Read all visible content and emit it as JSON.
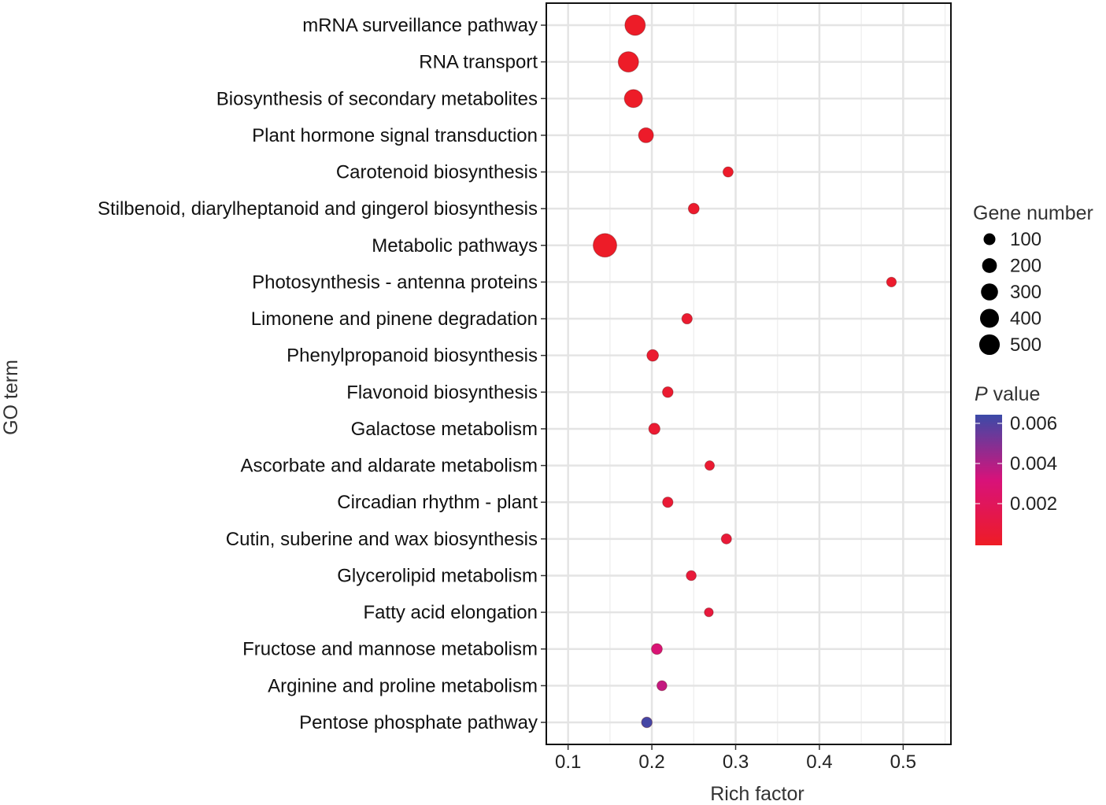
{
  "chart_data": {
    "type": "scatter",
    "xlabel": "Rich factor",
    "ylabel": "GO term",
    "xlim": [
      0.074,
      0.557
    ],
    "xticks": [
      "0.1",
      "0.2",
      "0.3",
      "0.4",
      "0.5"
    ],
    "grid": true,
    "legend_placement": "right",
    "size_legend": {
      "title": "Gene number",
      "values": [
        "100",
        "200",
        "300",
        "400",
        "500"
      ]
    },
    "color_legend": {
      "title_italic": "P",
      "title_rest": " value",
      "ticks": [
        "0.006",
        "0.004",
        "0.002"
      ],
      "range": [
        0,
        0.0064
      ],
      "low_color": "#ee1c25",
      "mid_color": "#d8127a",
      "high_color": "#3b4aa8"
    },
    "points": [
      {
        "term": "mRNA surveillance pathway",
        "rich_factor": 0.18,
        "gene_number": 490,
        "p_value": 0.0001
      },
      {
        "term": "RNA transport",
        "rich_factor": 0.172,
        "gene_number": 490,
        "p_value": 0.0001
      },
      {
        "term": "Biosynthesis of secondary metabolites",
        "rich_factor": 0.178,
        "gene_number": 360,
        "p_value": 0.0001
      },
      {
        "term": "Plant hormone signal transduction",
        "rich_factor": 0.193,
        "gene_number": 210,
        "p_value": 0.0002
      },
      {
        "term": "Carotenoid biosynthesis",
        "rich_factor": 0.291,
        "gene_number": 60,
        "p_value": 0.0002
      },
      {
        "term": "Stilbenoid, diarylheptanoid and gingerol biosynthesis",
        "rich_factor": 0.25,
        "gene_number": 75,
        "p_value": 0.0003
      },
      {
        "term": "Metabolic pathways",
        "rich_factor": 0.144,
        "gene_number": 710,
        "p_value": 0.0001
      },
      {
        "term": "Photosynthesis - antenna proteins",
        "rich_factor": 0.486,
        "gene_number": 50,
        "p_value": 0.0003
      },
      {
        "term": "Limonene and pinene degradation",
        "rich_factor": 0.242,
        "gene_number": 65,
        "p_value": 0.0004
      },
      {
        "term": "Phenylpropanoid biosynthesis",
        "rich_factor": 0.201,
        "gene_number": 95,
        "p_value": 0.0004
      },
      {
        "term": "Flavonoid biosynthesis",
        "rich_factor": 0.219,
        "gene_number": 70,
        "p_value": 0.0004
      },
      {
        "term": "Galactose metabolism",
        "rich_factor": 0.203,
        "gene_number": 85,
        "p_value": 0.0005
      },
      {
        "term": "Ascorbate and aldarate metabolism",
        "rich_factor": 0.269,
        "gene_number": 45,
        "p_value": 0.0005
      },
      {
        "term": "Circadian rhythm - plant",
        "rich_factor": 0.219,
        "gene_number": 65,
        "p_value": 0.0006
      },
      {
        "term": "Cutin, suberine and wax biosynthesis",
        "rich_factor": 0.289,
        "gene_number": 60,
        "p_value": 0.0007
      },
      {
        "term": "Glycerolipid metabolism",
        "rich_factor": 0.247,
        "gene_number": 55,
        "p_value": 0.0008
      },
      {
        "term": "Fatty acid elongation",
        "rich_factor": 0.268,
        "gene_number": 35,
        "p_value": 0.0009
      },
      {
        "term": "Fructose and mannose metabolism",
        "rich_factor": 0.206,
        "gene_number": 75,
        "p_value": 0.003
      },
      {
        "term": "Arginine and proline metabolism",
        "rich_factor": 0.212,
        "gene_number": 55,
        "p_value": 0.0036
      },
      {
        "term": "Pentose phosphate pathway",
        "rich_factor": 0.194,
        "gene_number": 70,
        "p_value": 0.0062
      }
    ]
  }
}
